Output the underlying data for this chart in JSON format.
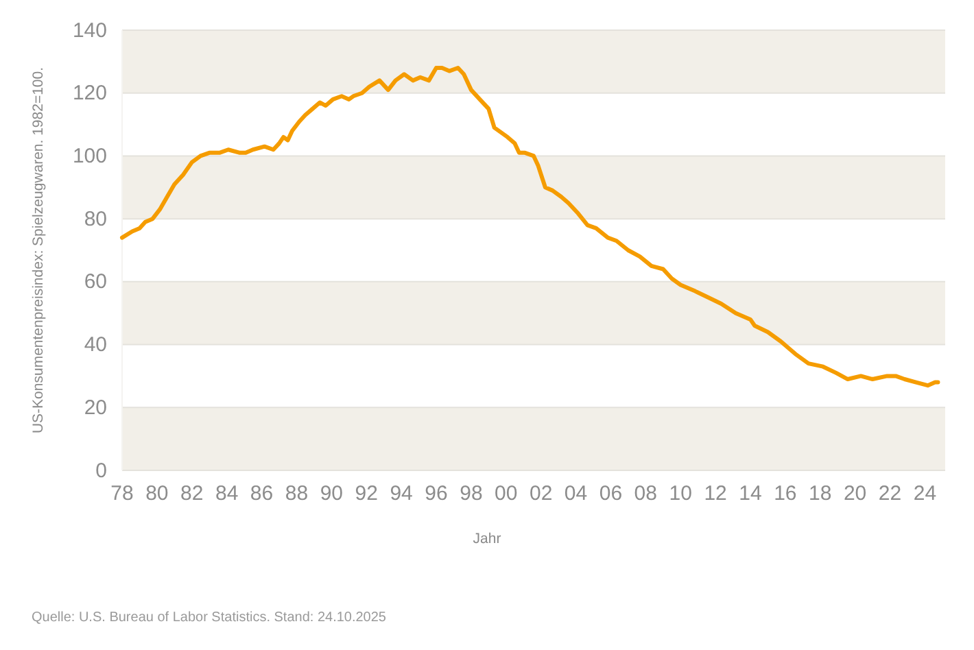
{
  "chart_data": {
    "type": "line",
    "xlabel": "Jahr",
    "ylabel": "US-Konsumentenpreisindex: Spielzeugwaren. 1982=100.",
    "annotations": [
      "Quelle: U.S. Bureau of Labor Statistics. Stand: 24.10.2025"
    ],
    "x": [
      "1978-01",
      "1978-08",
      "1979-01",
      "1979-05",
      "1979-10",
      "1980-03",
      "1980-08",
      "1981-01",
      "1981-07",
      "1982-01",
      "1982-07",
      "1983-01",
      "1983-08",
      "1984-02",
      "1984-10",
      "1985-02",
      "1985-07",
      "1986-03",
      "1986-09",
      "1987-01",
      "1987-04",
      "1987-07",
      "1987-10",
      "1988-03",
      "1988-07",
      "1988-12",
      "1989-05",
      "1989-09",
      "1990-02",
      "1990-08",
      "1991-01",
      "1991-04",
      "1991-10",
      "1992-03",
      "1992-10",
      "1993-04",
      "1993-09",
      "1994-03",
      "1994-09",
      "1995-02",
      "1995-08",
      "1996-01",
      "1996-05",
      "1996-10",
      "1997-04",
      "1997-08",
      "1998-01",
      "1998-07",
      "1999-01",
      "1999-05",
      "2000-02",
      "2000-07",
      "2000-10",
      "2001-02",
      "2001-08",
      "2001-11",
      "2002-04",
      "2002-09",
      "2003-03",
      "2003-08",
      "2004-02",
      "2004-09",
      "2005-03",
      "2005-11",
      "2006-05",
      "2007-01",
      "2007-09",
      "2008-05",
      "2009-01",
      "2009-07",
      "2010-01",
      "2010-11",
      "2011-08",
      "2012-05",
      "2013-03",
      "2014-01",
      "2014-04",
      "2015-01",
      "2015-10",
      "2016-08",
      "2017-05",
      "2018-03",
      "2018-12",
      "2019-08",
      "2020-05",
      "2021-01",
      "2021-11",
      "2022-05",
      "2022-11",
      "2023-07",
      "2024-03",
      "2024-08",
      "2024-10"
    ],
    "series": [
      {
        "color": "#f59c00",
        "values": [
          74,
          76,
          77,
          79,
          80,
          83,
          87,
          91,
          94,
          98,
          100,
          101,
          101,
          102,
          101,
          101,
          102,
          103,
          102,
          104,
          106,
          105,
          108,
          111,
          113,
          115,
          117,
          116,
          118,
          119,
          118,
          119,
          120,
          122,
          124,
          121,
          124,
          126,
          124,
          125,
          124,
          128,
          128,
          127,
          128,
          126,
          121,
          118,
          115,
          109,
          106,
          104,
          101,
          101,
          100,
          97,
          90,
          89,
          87,
          85,
          82,
          78,
          77,
          74,
          73,
          70,
          68,
          65,
          64,
          61,
          59,
          57,
          55,
          53,
          50,
          48,
          46,
          44,
          41,
          37,
          34,
          33,
          31,
          29,
          30,
          29,
          30,
          30,
          29,
          28,
          27,
          28,
          28
        ]
      }
    ],
    "xlim": [
      "1978-01",
      "2025-03"
    ],
    "xticks": [
      {
        "value": "1978",
        "label": "78"
      },
      {
        "value": "1980",
        "label": "80"
      },
      {
        "value": "1982",
        "label": "82"
      },
      {
        "value": "1984",
        "label": "84"
      },
      {
        "value": "1986",
        "label": "86"
      },
      {
        "value": "1988",
        "label": "88"
      },
      {
        "value": "1990",
        "label": "90"
      },
      {
        "value": "1992",
        "label": "92"
      },
      {
        "value": "1994",
        "label": "94"
      },
      {
        "value": "1996",
        "label": "96"
      },
      {
        "value": "1998",
        "label": "98"
      },
      {
        "value": "2000",
        "label": "00"
      },
      {
        "value": "2002",
        "label": "02"
      },
      {
        "value": "2004",
        "label": "04"
      },
      {
        "value": "2006",
        "label": "06"
      },
      {
        "value": "2008",
        "label": "08"
      },
      {
        "value": "2010",
        "label": "10"
      },
      {
        "value": "2012",
        "label": "12"
      },
      {
        "value": "2014",
        "label": "14"
      },
      {
        "value": "2016",
        "label": "16"
      },
      {
        "value": "2018",
        "label": "18"
      },
      {
        "value": "2020",
        "label": "20"
      },
      {
        "value": "2022",
        "label": "22"
      },
      {
        "value": "2024",
        "label": "24"
      }
    ],
    "ylim": [
      0,
      140
    ],
    "yticks": [
      0,
      20,
      40,
      60,
      80,
      100,
      120,
      140
    ],
    "bands": [
      {
        "axis": "y",
        "from": 0,
        "to": 20,
        "color": "#f2efe8"
      },
      {
        "axis": "y",
        "from": 40,
        "to": 60,
        "color": "#f2efe8"
      },
      {
        "axis": "y",
        "from": 80,
        "to": 100,
        "color": "#f2efe8"
      },
      {
        "axis": "y",
        "from": 120,
        "to": 140,
        "color": "#f2efe8"
      }
    ],
    "grid": "y"
  }
}
